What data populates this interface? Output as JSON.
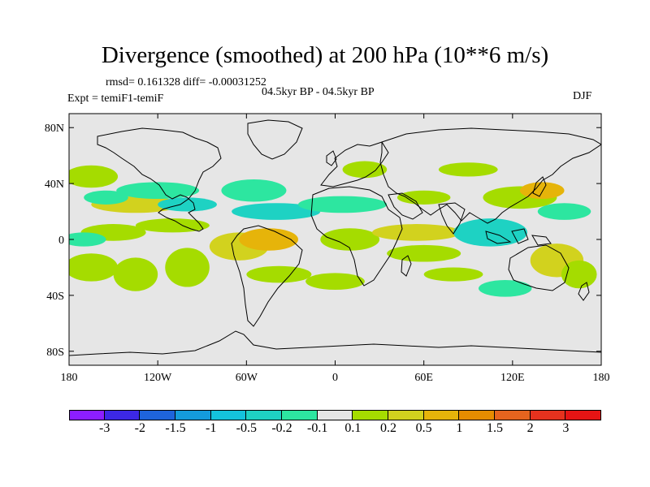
{
  "title": "Divergence (smoothed) at 200 hPa (10**6 m/s)",
  "stats_text": "rmsd= 0.161328 diff= -0.00031252",
  "period_text": "04.5kyr BP - 04.5kyr BP",
  "expt_text": "Expt = temiF1-temiF",
  "season_text": "DJF",
  "chart_data": {
    "type": "heatmap",
    "title": "Divergence (smoothed) at 200 hPa (10**6 m/s)",
    "x_tick_labels": [
      "180",
      "120W",
      "60W",
      "0",
      "60E",
      "120E",
      "180"
    ],
    "x_tick_values": [
      -180,
      -120,
      -60,
      0,
      60,
      120,
      180
    ],
    "y_tick_labels": [
      "80N",
      "40N",
      "0",
      "40S",
      "80S"
    ],
    "y_tick_values": [
      80,
      40,
      0,
      -40,
      -80
    ],
    "xlim": [
      -180,
      180
    ],
    "ylim": [
      -90,
      90
    ],
    "colorbar": {
      "labels": [
        "-3",
        "-2",
        "-1.5",
        "-1",
        "-0.5",
        "-0.2",
        "-0.1",
        "0.1",
        "0.2",
        "0.5",
        "1",
        "1.5",
        "2",
        "3"
      ],
      "colors": [
        "#8c1eff",
        "#3c28e6",
        "#1e64dc",
        "#149bdc",
        "#14c3dc",
        "#1ed2c3",
        "#2de6a0",
        "#e6e6e6",
        "#a5dc00",
        "#d2d21e",
        "#e6b40a",
        "#e68c00",
        "#e6641e",
        "#e6321e",
        "#e61414"
      ]
    },
    "neutral_color": "#e6e6e6",
    "blobs": [
      {
        "lon": -165,
        "lat": 45,
        "rx": 18,
        "ry": 8,
        "level": 1
      },
      {
        "lon": -135,
        "lat": 25,
        "rx": 30,
        "ry": 6,
        "level": 2
      },
      {
        "lon": -150,
        "lat": 5,
        "rx": 22,
        "ry": 6,
        "level": 1
      },
      {
        "lon": -110,
        "lat": 10,
        "rx": 25,
        "ry": 5,
        "level": 1
      },
      {
        "lon": -165,
        "lat": -20,
        "rx": 18,
        "ry": 10,
        "level": 1
      },
      {
        "lon": -135,
        "lat": -25,
        "rx": 15,
        "ry": 12,
        "level": 1
      },
      {
        "lon": -100,
        "lat": -20,
        "rx": 15,
        "ry": 14,
        "level": 1
      },
      {
        "lon": -65,
        "lat": -5,
        "rx": 20,
        "ry": 10,
        "level": 2
      },
      {
        "lon": -45,
        "lat": 0,
        "rx": 20,
        "ry": 8,
        "level": 3
      },
      {
        "lon": -38,
        "lat": -25,
        "rx": 22,
        "ry": 6,
        "level": 1
      },
      {
        "lon": -120,
        "lat": 35,
        "rx": 28,
        "ry": 6,
        "level": -1
      },
      {
        "lon": -100,
        "lat": 25,
        "rx": 20,
        "ry": 5,
        "level": -2
      },
      {
        "lon": -55,
        "lat": 35,
        "rx": 22,
        "ry": 8,
        "level": -1
      },
      {
        "lon": -40,
        "lat": 20,
        "rx": 30,
        "ry": 6,
        "level": -2
      },
      {
        "lon": 5,
        "lat": 25,
        "rx": 30,
        "ry": 6,
        "level": -1
      },
      {
        "lon": 10,
        "lat": 0,
        "rx": 20,
        "ry": 8,
        "level": 1
      },
      {
        "lon": 55,
        "lat": 5,
        "rx": 30,
        "ry": 6,
        "level": 2
      },
      {
        "lon": 60,
        "lat": -10,
        "rx": 25,
        "ry": 6,
        "level": 1
      },
      {
        "lon": 105,
        "lat": 5,
        "rx": 25,
        "ry": 10,
        "level": -2
      },
      {
        "lon": 125,
        "lat": 30,
        "rx": 25,
        "ry": 8,
        "level": 1
      },
      {
        "lon": 140,
        "lat": 35,
        "rx": 15,
        "ry": 6,
        "level": 3
      },
      {
        "lon": 155,
        "lat": 20,
        "rx": 18,
        "ry": 6,
        "level": -1
      },
      {
        "lon": 150,
        "lat": -15,
        "rx": 18,
        "ry": 12,
        "level": 2
      },
      {
        "lon": 165,
        "lat": -25,
        "rx": 12,
        "ry": 10,
        "level": 1
      },
      {
        "lon": 20,
        "lat": 50,
        "rx": 15,
        "ry": 6,
        "level": 1
      },
      {
        "lon": 90,
        "lat": 50,
        "rx": 20,
        "ry": 5,
        "level": 1
      },
      {
        "lon": 60,
        "lat": 30,
        "rx": 18,
        "ry": 5,
        "level": 1
      },
      {
        "lon": 0,
        "lat": -30,
        "rx": 20,
        "ry": 6,
        "level": 1
      },
      {
        "lon": 80,
        "lat": -25,
        "rx": 20,
        "ry": 5,
        "level": 1
      },
      {
        "lon": 115,
        "lat": -35,
        "rx": 18,
        "ry": 6,
        "level": -1
      },
      {
        "lon": -170,
        "lat": 0,
        "rx": 15,
        "ry": 5,
        "level": -1
      },
      {
        "lon": -155,
        "lat": 30,
        "rx": 15,
        "ry": 5,
        "level": -1
      }
    ]
  }
}
